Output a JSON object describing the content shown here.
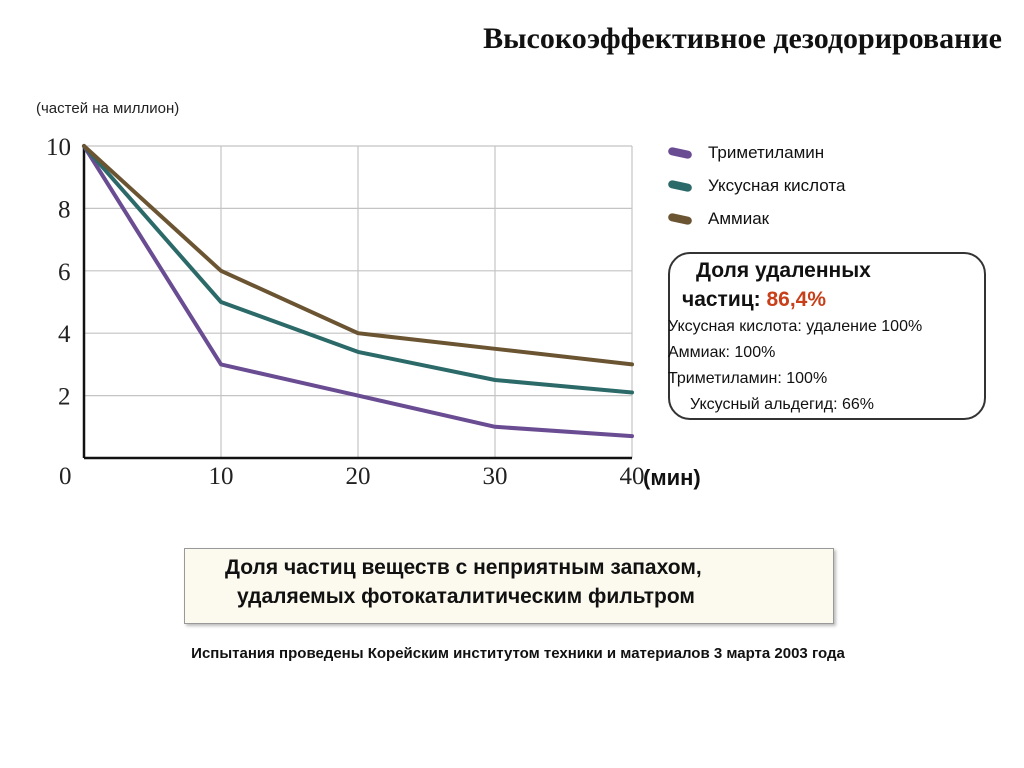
{
  "header": {
    "title": "Высокоэффективное дезодорирование"
  },
  "chart_data": {
    "type": "line",
    "ylabel": "(частей на миллион)",
    "xlabel": "(мин)",
    "x": [
      0,
      10,
      20,
      30,
      40
    ],
    "xlim": [
      0,
      40
    ],
    "ylim": [
      0,
      10
    ],
    "x_ticks": [
      "0",
      "10",
      "20",
      "30",
      "40"
    ],
    "y_ticks": [
      "2",
      "4",
      "6",
      "8",
      "10"
    ],
    "grid": true,
    "legend_position": "right",
    "series": [
      {
        "name": "Триметиламин",
        "color": "#6a4c93",
        "values": [
          10,
          3.0,
          2.0,
          1.0,
          0.7
        ]
      },
      {
        "name": "Уксусная кислота",
        "color": "#2b6a68",
        "values": [
          10,
          5.0,
          3.4,
          2.5,
          2.1
        ]
      },
      {
        "name": "Аммиак",
        "color": "#6b5432",
        "values": [
          10,
          6.0,
          4.0,
          3.5,
          3.0
        ]
      }
    ]
  },
  "result_box": {
    "heading_line1": "Доля удаленных",
    "heading_line2": "частиц: ",
    "percent": "86,4%",
    "lines": [
      "Уксусная кислота: удаление 100%",
      "Аммиак: 100%",
      "Триметиламин: 100%",
      "Уксусный альдегид: 66%"
    ]
  },
  "caption": {
    "line1": "Доля частиц веществ с неприятным запахом,",
    "line2": "удаляемых фотокаталитическим фильтром"
  },
  "footnote": "Испытания проведены Корейским институтом техники и материалов 3 марта 2003 года"
}
